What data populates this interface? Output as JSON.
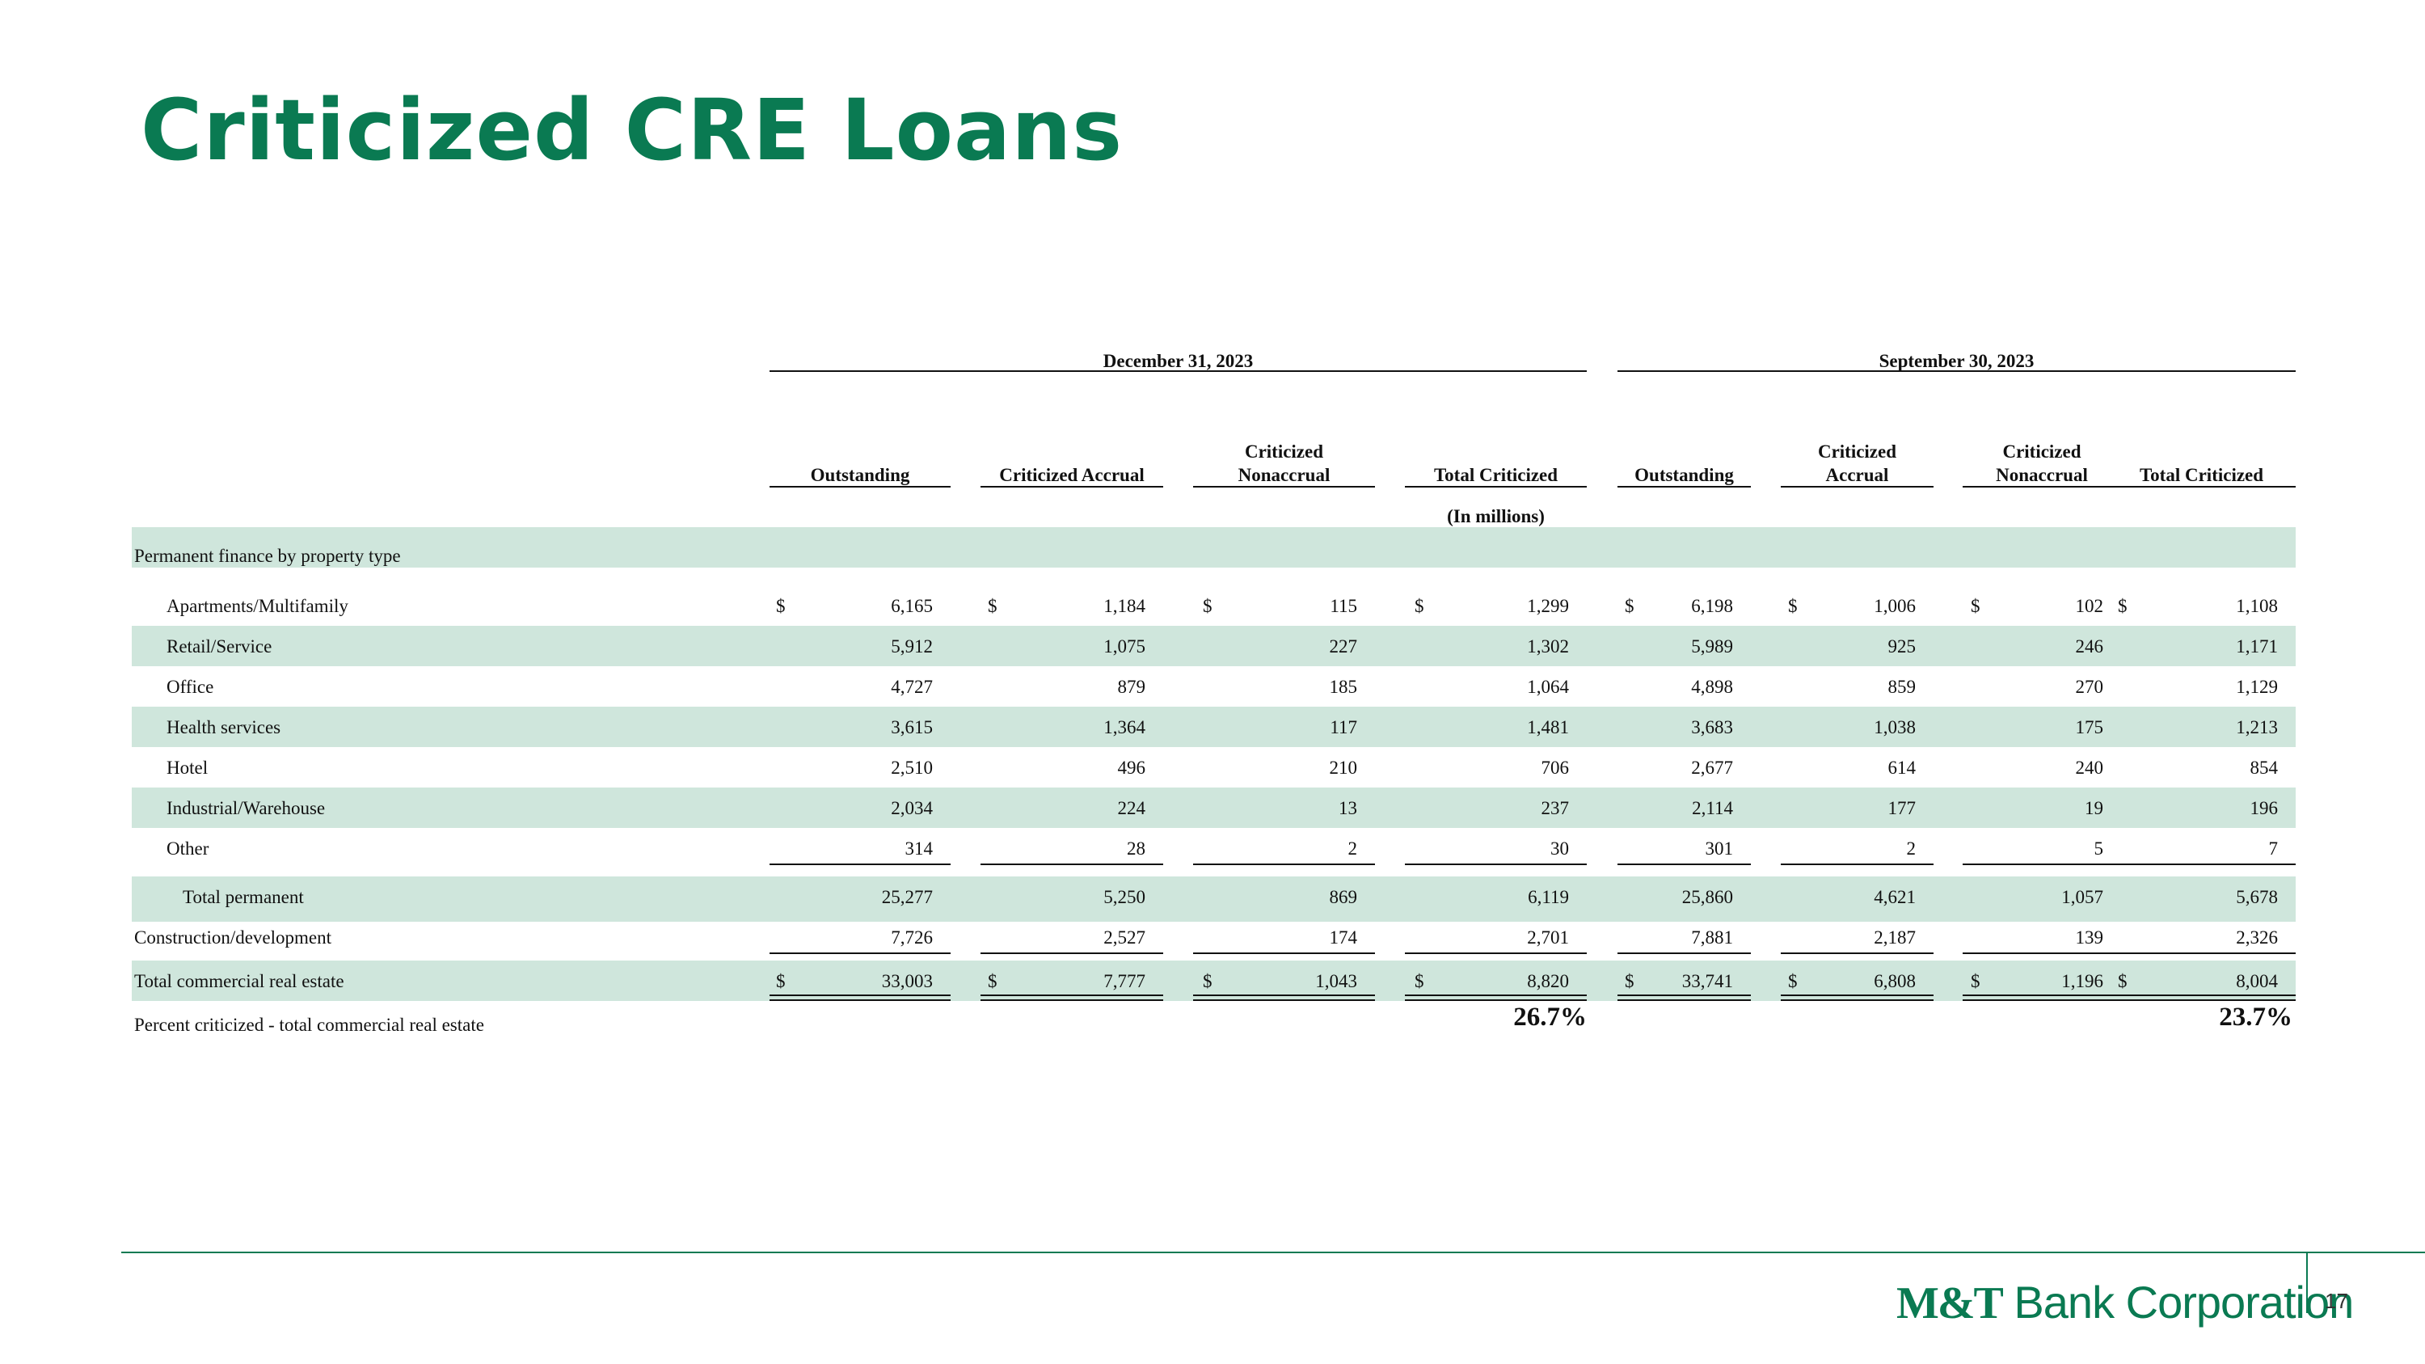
{
  "page_title": "Criticized CRE Loans",
  "table": {
    "period_headers": [
      "December 31, 2023",
      "September 30, 2023"
    ],
    "column_headers": [
      {
        "line1": "",
        "line2": "Outstanding"
      },
      {
        "line1": "",
        "line2": "Criticized Accrual"
      },
      {
        "line1": "Criticized",
        "line2": "Nonaccrual"
      },
      {
        "line1": "",
        "line2": "Total Criticized"
      },
      {
        "line1": "",
        "line2": "Outstanding"
      },
      {
        "line1": "Criticized",
        "line2": "Accrual"
      },
      {
        "line1": "Criticized",
        "line2": "Nonaccrual"
      },
      {
        "line1": "",
        "line2": "Total Criticized"
      }
    ],
    "units_label": "(In millions)",
    "section_label": "Permanent finance by property type",
    "rows": [
      {
        "label": "Apartments/Multifamily",
        "values": [
          "6,165",
          "1,184",
          "115",
          "1,299",
          "6,198",
          "1,006",
          "102",
          "1,108"
        ]
      },
      {
        "label": "Retail/Service",
        "values": [
          "5,912",
          "1,075",
          "227",
          "1,302",
          "5,989",
          "925",
          "246",
          "1,171"
        ]
      },
      {
        "label": "Office",
        "values": [
          "4,727",
          "879",
          "185",
          "1,064",
          "4,898",
          "859",
          "270",
          "1,129"
        ]
      },
      {
        "label": "Health services",
        "values": [
          "3,615",
          "1,364",
          "117",
          "1,481",
          "3,683",
          "1,038",
          "175",
          "1,213"
        ]
      },
      {
        "label": "Hotel",
        "values": [
          "2,510",
          "496",
          "210",
          "706",
          "2,677",
          "614",
          "240",
          "854"
        ]
      },
      {
        "label": "Industrial/Warehouse",
        "values": [
          "2,034",
          "224",
          "13",
          "237",
          "2,114",
          "177",
          "19",
          "196"
        ]
      },
      {
        "label": "Other",
        "values": [
          "314",
          "28",
          "2",
          "30",
          "301",
          "2",
          "5",
          "7"
        ]
      },
      {
        "label": "Total permanent",
        "values": [
          "25,277",
          "5,250",
          "869",
          "6,119",
          "25,860",
          "4,621",
          "1,057",
          "5,678"
        ]
      },
      {
        "label": "Construction/development",
        "values": [
          "7,726",
          "2,527",
          "174",
          "2,701",
          "7,881",
          "2,187",
          "139",
          "2,326"
        ]
      },
      {
        "label": "Total commercial real estate",
        "values": [
          "33,003",
          "7,777",
          "1,043",
          "8,820",
          "33,741",
          "6,808",
          "1,196",
          "8,004"
        ]
      }
    ],
    "currency_symbol": "$",
    "percent_row": {
      "label": "Percent criticized - total commercial real estate",
      "values": [
        "26.7%",
        "23.7%"
      ]
    }
  },
  "footer": {
    "brand_bold": "M&T",
    "brand_rest": "Bank Corporation",
    "page_number": "17"
  },
  "colors": {
    "brand_green": "#0a7a52",
    "row_shade": "#cfe6dc"
  }
}
